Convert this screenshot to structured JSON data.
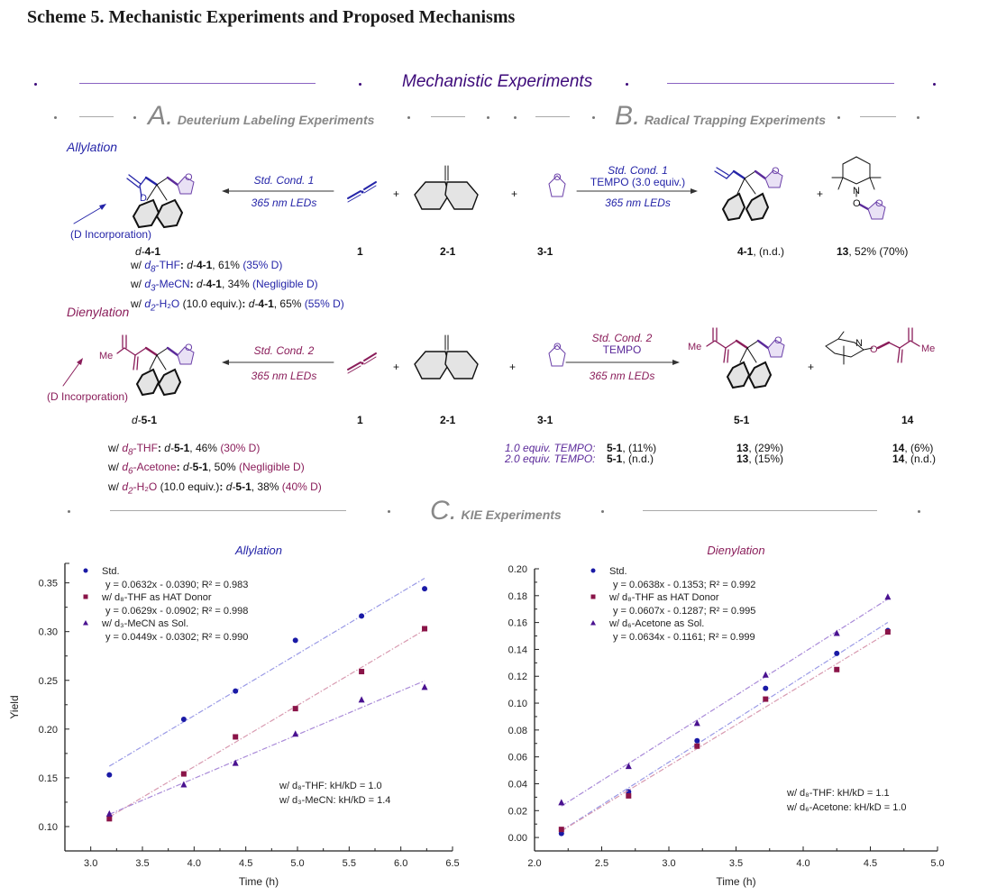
{
  "caption": "Scheme 5. Mechanistic Experiments and Proposed Mechanisms",
  "main_title": "Mechanistic Experiments",
  "sections": {
    "A": {
      "letter": "A.",
      "title": "Deuterium Labeling Experiments"
    },
    "B": {
      "letter": "B.",
      "title": "Radical Trapping Experiments"
    },
    "C": {
      "letter": "C.",
      "title": "KIE Experiments"
    }
  },
  "allylation": {
    "label": "Allylation",
    "d_incorporation": "(D Incorporation)",
    "d_atom": "D",
    "left_conditions": {
      "top": "Std. Cond. 1",
      "bottom": "365 nm LEDs"
    },
    "right_conditions": {
      "top": "Std. Cond. 1",
      "middle": "TEMPO (3.0 equiv.)",
      "bottom": "365 nm LEDs"
    },
    "compounds": {
      "product_d": {
        "prefix": "d-",
        "id": "4-1"
      },
      "reagent_1": {
        "id": "1"
      },
      "reagent_2": {
        "id": "2-1"
      },
      "reagent_3": {
        "id": "3-1"
      },
      "product": {
        "id": "4-1",
        "suffix": ", (n.d.)"
      },
      "trap": {
        "id": "13",
        "suffix": ", 52% (70%)"
      }
    },
    "plus": "+",
    "results": [
      {
        "prefix": "w/ ",
        "solvent_d": "d",
        "solvent_sub": "8",
        "solvent": "-THF",
        "colon": ": ",
        "cpd_prefix": "d-",
        "cpd": "4-1",
        "yield": ", 61% ",
        "d_content": "(35% D)"
      },
      {
        "prefix": "w/ ",
        "solvent_d": "d",
        "solvent_sub": "3",
        "solvent": "-MeCN",
        "colon": ": ",
        "cpd_prefix": "d-",
        "cpd": "4-1",
        "yield": ", 34% ",
        "d_content": "(Negligible D)"
      },
      {
        "prefix": "w/ ",
        "solvent_d": "d",
        "solvent_sub": "2",
        "solvent": "-H₂O",
        "extra": " (10.0 equiv.)",
        "colon": ": ",
        "cpd_prefix": "d-",
        "cpd": "4-1",
        "yield": ", 65% ",
        "d_content": "(55% D)"
      }
    ]
  },
  "dienylation": {
    "label": "Dienylation",
    "d_incorporation": "(D  Incorporation)",
    "me_label": "Me",
    "left_conditions": {
      "top": "Std. Cond. 2",
      "bottom": "365 nm LEDs"
    },
    "right_conditions": {
      "top": "Std. Cond. 2",
      "middle": "TEMPO",
      "bottom": "365 nm LEDs"
    },
    "compounds": {
      "product_d": {
        "prefix": "d-",
        "id": "5-1"
      },
      "reagent_1": {
        "id": "1"
      },
      "reagent_2": {
        "id": "2-1"
      },
      "reagent_3": {
        "id": "3-1"
      },
      "product": {
        "id": "5-1"
      },
      "trap": {
        "id": "14"
      }
    },
    "results": [
      {
        "prefix": "w/ ",
        "solvent_d": "d",
        "solvent_sub": "8",
        "solvent": "-THF",
        "colon": ": ",
        "cpd_prefix": "d-",
        "cpd": "5-1",
        "yield": ", 46% ",
        "d_content": "(30% D)"
      },
      {
        "prefix": "w/ ",
        "solvent_d": "d",
        "solvent_sub": "6",
        "solvent": "-Acetone",
        "colon": ": ",
        "cpd_prefix": "d-",
        "cpd": "5-1",
        "yield": ", 50% ",
        "d_content": "(Negligible D)"
      },
      {
        "prefix": "w/ ",
        "solvent_d": "d",
        "solvent_sub": "2",
        "solvent": "-H₂O",
        "extra": " (10.0 equiv.)",
        "colon": ": ",
        "cpd_prefix": "d-",
        "cpd": "5-1",
        "yield": ", 38% ",
        "d_content": "(40% D)"
      }
    ],
    "tempo_table": [
      {
        "condition": "1.0 equiv. TEMPO:",
        "c1": "5-1",
        "v1": ", (11%)",
        "c2": "13",
        "v2": ", (29%)",
        "c3": "14",
        "v3": ", (6%)"
      },
      {
        "condition": "2.0 equiv. TEMPO:",
        "c1": "5-1",
        "v1": ", (n.d.)",
        "c2": "13",
        "v2": ", (15%)",
        "c3": "14",
        "v3": ", (n.d.)"
      }
    ]
  },
  "atom_labels": {
    "O": "O",
    "N": "N",
    "Me": "Me"
  },
  "colors": {
    "allyl": "#2424a8",
    "dien": "#8a1d5a",
    "purple": "#3d0a7a",
    "gray": "#888888",
    "thf": "#6a3fa8"
  },
  "chart_data": [
    {
      "type": "scatter",
      "title": "Allylation",
      "xlabel": "Time (h)",
      "ylabel": "Yield",
      "xlim": [
        2.75,
        6.5
      ],
      "ylim": [
        0.075,
        0.37
      ],
      "xticks": [
        3.0,
        3.5,
        4.0,
        4.5,
        5.0,
        5.5,
        6.0,
        6.5
      ],
      "yticks": [
        0.1,
        0.15,
        0.2,
        0.25,
        0.3,
        0.35
      ],
      "xtick_labels": [
        "3.0",
        "3.5",
        "4.0",
        "4.5",
        "5.0",
        "5.5",
        "6.0",
        "6.5"
      ],
      "ytick_labels": [
        "0.10",
        "0.15",
        "0.20",
        "0.25",
        "0.30",
        "0.35"
      ],
      "grid": false,
      "legend_position": "top-left",
      "series": [
        {
          "name": "Std.",
          "marker": "circle",
          "color": "#1a1aa6",
          "line_color": "#9a9ae6",
          "fit": "y = 0.0632x - 0.0390; R² = 0.983",
          "slope": 0.0632,
          "intercept": -0.039,
          "x": [
            3.18,
            3.9,
            4.4,
            4.98,
            5.62,
            6.23
          ],
          "y": [
            0.153,
            0.21,
            0.239,
            0.291,
            0.316,
            0.344
          ]
        },
        {
          "name": "w/ d₈-THF as HAT Donor",
          "marker": "square",
          "color": "#8a1448",
          "line_color": "#d89ab0",
          "fit": "y = 0.0629x - 0.0902; R² = 0.998",
          "slope": 0.0629,
          "intercept": -0.0902,
          "x": [
            3.18,
            3.9,
            4.4,
            4.98,
            5.62,
            6.23
          ],
          "y": [
            0.108,
            0.154,
            0.192,
            0.221,
            0.259,
            0.303
          ]
        },
        {
          "name": "w/ d₃-MeCN as Sol.",
          "marker": "triangle",
          "color": "#4a1290",
          "line_color": "#a98ad8",
          "fit": "y = 0.0449x - 0.0302; R² = 0.990",
          "slope": 0.0449,
          "intercept": -0.0302,
          "x": [
            3.18,
            3.9,
            4.4,
            4.98,
            5.62,
            6.23
          ],
          "y": [
            0.113,
            0.143,
            0.165,
            0.195,
            0.23,
            0.243
          ]
        }
      ],
      "annotations": [
        "w/ d₈-THF: kH/kD = 1.0",
        "w/ d₃-MeCN: kH/kD = 1.4"
      ]
    },
    {
      "type": "scatter",
      "title": "Dienylation",
      "xlabel": "Time (h)",
      "ylabel": "Yield",
      "xlim": [
        2.0,
        5.0
      ],
      "ylim": [
        -0.01,
        0.2
      ],
      "xticks": [
        2.0,
        2.5,
        3.0,
        3.5,
        4.0,
        4.5,
        5.0
      ],
      "yticks": [
        0.0,
        0.02,
        0.04,
        0.06,
        0.08,
        0.1,
        0.12,
        0.14,
        0.16,
        0.18,
        0.2
      ],
      "xtick_labels": [
        "2.0",
        "2.5",
        "3.0",
        "3.5",
        "4.0",
        "4.5",
        "5.0"
      ],
      "ytick_labels": [
        "0.00",
        "0.02",
        "0.04",
        "0.06",
        "0.08",
        "0.10",
        "0.12",
        "0.14",
        "0.16",
        "0.18",
        "0.20"
      ],
      "grid": false,
      "legend_position": "top-left",
      "series": [
        {
          "name": "Std.",
          "marker": "circle",
          "color": "#1a1aa6",
          "line_color": "#9a9ae6",
          "fit": "y = 0.0638x - 0.1353; R² = 0.992",
          "slope": 0.0638,
          "intercept": -0.1353,
          "x": [
            2.2,
            2.7,
            3.21,
            3.72,
            4.25,
            4.63
          ],
          "y": [
            0.003,
            0.034,
            0.072,
            0.111,
            0.137,
            0.154
          ]
        },
        {
          "name": "w/ d₈-THF as HAT Donor",
          "marker": "square",
          "color": "#8a1448",
          "line_color": "#d89ab0",
          "fit": "y = 0.0607x - 0.1287; R² = 0.995",
          "slope": 0.0607,
          "intercept": -0.1287,
          "x": [
            2.2,
            2.7,
            3.21,
            3.72,
            4.25,
            4.63
          ],
          "y": [
            0.006,
            0.031,
            0.068,
            0.103,
            0.125,
            0.153
          ]
        },
        {
          "name": "w/ d₆-Acetone as Sol.",
          "marker": "triangle",
          "color": "#4a1290",
          "line_color": "#a98ad8",
          "fit": "y = 0.0634x - 0.1161; R² = 0.999",
          "slope": 0.0634,
          "intercept": -0.1161,
          "x": [
            2.2,
            2.7,
            3.21,
            3.72,
            4.25,
            4.63
          ],
          "y": [
            0.026,
            0.053,
            0.085,
            0.121,
            0.152,
            0.179
          ]
        }
      ],
      "annotations": [
        "w/ d₈-THF: kH/kD = 1.1",
        "w/ d₆-Acetone: kH/kD = 1.0"
      ]
    }
  ]
}
